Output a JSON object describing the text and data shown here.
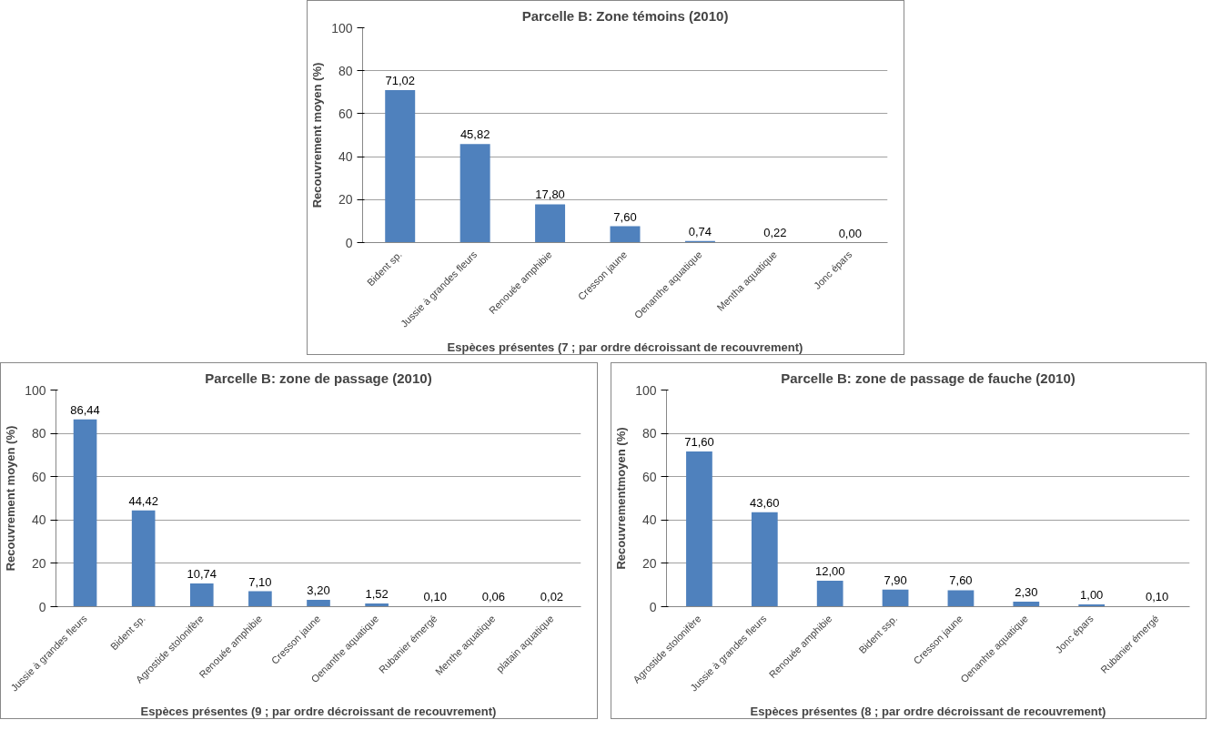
{
  "chart_data": [
    {
      "type": "bar",
      "title": "Parcelle B: Zone témoins (2010)",
      "xlabel": "Espèces présentes (7 ; par ordre décroissant de recouvrement)",
      "ylabel": "Recouvrement moyen (%)",
      "categories": [
        "Bident sp.",
        "Jussie à grandes fleurs",
        "Renouée amphibie",
        "Cresson jaune",
        "Oenanthe aquatique",
        "Mentha aquatique",
        "Jonc épars"
      ],
      "values": [
        71.02,
        45.82,
        17.8,
        7.6,
        0.74,
        0.22,
        0.0
      ],
      "value_labels": [
        "71,02",
        "45,82",
        "17,80",
        "7,60",
        "0,74",
        "0,22",
        "0,00"
      ],
      "color": "#4f81bd",
      "ylim": [
        0,
        100
      ],
      "yticks": [
        0,
        20,
        40,
        60,
        80,
        100
      ],
      "grid": "y"
    },
    {
      "type": "bar",
      "title": "Parcelle B: zone de passage (2010)",
      "xlabel": "Espèces présentes (9 ; par ordre décroissant de recouvrement)",
      "ylabel": "Recouvrement moyen (%)",
      "categories": [
        "Jussie à grandes fleurs",
        "Bident sp.",
        "Agrostide stolonifère",
        "Renouée amphibie",
        "Cresson jaune",
        "Oenanthe aquatique",
        "Rubanier émergé",
        "Menthe aquatique",
        "platain aquatique"
      ],
      "values": [
        86.44,
        44.42,
        10.74,
        7.1,
        3.2,
        1.52,
        0.1,
        0.06,
        0.02
      ],
      "value_labels": [
        "86,44",
        "44,42",
        "10,74",
        "7,10",
        "3,20",
        "1,52",
        "0,10",
        "0,06",
        "0,02"
      ],
      "color": "#4f81bd",
      "ylim": [
        0,
        100
      ],
      "yticks": [
        0,
        20,
        40,
        60,
        80,
        100
      ],
      "grid": "y"
    },
    {
      "type": "bar",
      "title": "Parcelle B: zone de passage de fauche (2010)",
      "xlabel": "Espèces présentes (8 ; par ordre décroissant de recouvrement)",
      "ylabel": "Recouvrementmoyen (%)",
      "categories": [
        "Agrostide stolonifère",
        "Jussie à grandes fleurs",
        "Renouée amphibie",
        "Bident ssp.",
        "Cresson jaune",
        "Oenanhte aquatique",
        "Jonc épars",
        "Rubanier émergé"
      ],
      "values": [
        71.6,
        43.6,
        12.0,
        7.9,
        7.6,
        2.3,
        1.0,
        0.1
      ],
      "value_labels": [
        "71,60",
        "43,60",
        "12,00",
        "7,90",
        "7,60",
        "2,30",
        "1,00",
        "0,10"
      ],
      "color": "#4f81bd",
      "ylim": [
        0,
        100
      ],
      "yticks": [
        0,
        20,
        40,
        60,
        80,
        100
      ],
      "grid": "y"
    }
  ]
}
